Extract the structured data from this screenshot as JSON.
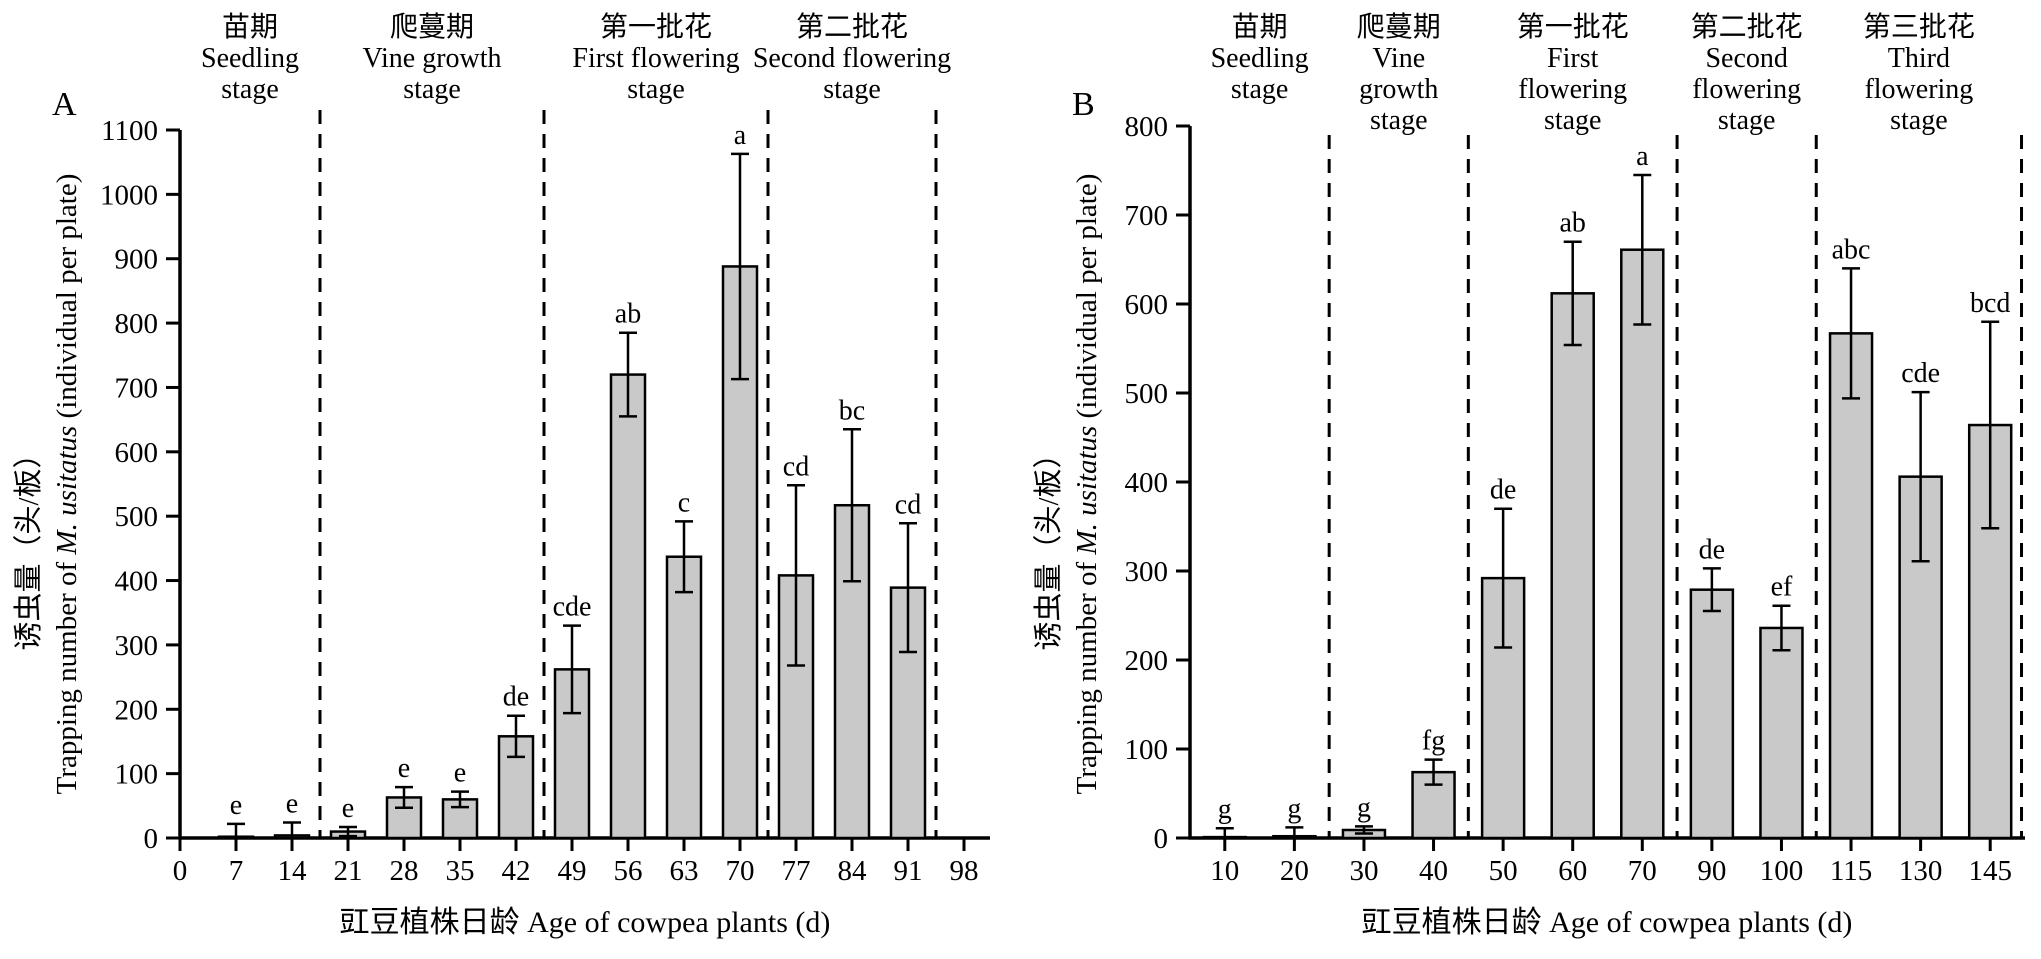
{
  "figure": {
    "background": "#ffffff",
    "bar_fill": "#c9c9c9",
    "line_color": "#000000",
    "x_axis_label": "豇豆植株日龄 Age of cowpea plants (d)",
    "y_axis_label_cn": "诱虫量（头/板）",
    "y_axis_label_en_prefix": "Trapping number of ",
    "y_axis_label_en_italic": "M. usitatus",
    "y_axis_label_en_suffix": " (individual per plate)"
  },
  "chart_data": [
    {
      "type": "bar",
      "panel_label": "A",
      "title": "",
      "categories": [
        "0",
        "7",
        "14",
        "21",
        "28",
        "35",
        "42",
        "49",
        "56",
        "63",
        "70",
        "77",
        "84",
        "91",
        "98"
      ],
      "bars": [
        {
          "category": "7",
          "mean": 2,
          "error": 20,
          "sig_letter": "e"
        },
        {
          "category": "14",
          "mean": 4,
          "error": 20,
          "sig_letter": "e"
        },
        {
          "category": "21",
          "mean": 10,
          "error": 7,
          "sig_letter": "e"
        },
        {
          "category": "28",
          "mean": 63,
          "error": 16,
          "sig_letter": "e"
        },
        {
          "category": "35",
          "mean": 60,
          "error": 12,
          "sig_letter": "e"
        },
        {
          "category": "42",
          "mean": 158,
          "error": 32,
          "sig_letter": "de"
        },
        {
          "category": "49",
          "mean": 262,
          "error": 68,
          "sig_letter": "cde"
        },
        {
          "category": "56",
          "mean": 720,
          "error": 65,
          "sig_letter": "ab"
        },
        {
          "category": "63",
          "mean": 437,
          "error": 55,
          "sig_letter": "c"
        },
        {
          "category": "70",
          "mean": 888,
          "error": 175,
          "sig_letter": "a"
        },
        {
          "category": "77",
          "mean": 408,
          "error": 140,
          "sig_letter": "cd"
        },
        {
          "category": "84",
          "mean": 517,
          "error": 118,
          "sig_letter": "bc"
        },
        {
          "category": "91",
          "mean": 389,
          "error": 100,
          "sig_letter": "cd"
        }
      ],
      "ylim": [
        0,
        1100
      ],
      "y_tick_step": 100,
      "grid": false,
      "legend": null,
      "xlabel": "豇豆植株日龄 Age of cowpea plants (d)",
      "ylabel_cn": "诱虫量（头/板）",
      "ylabel_en_prefix": "Trapping number of ",
      "ylabel_en_italic": "M. usitatus",
      "ylabel_en_suffix": " (individual per plate)",
      "x_mode": "edge",
      "separators_tick_units": [
        2.5,
        6.5,
        10.5,
        13.5
      ],
      "stages": [
        {
          "label_cn": "苗期",
          "label_en_lines": [
            "Seedling",
            "stage"
          ],
          "span_ticks": [
            0,
            2.5
          ]
        },
        {
          "label_cn": "爬蔓期",
          "label_en_lines": [
            "Vine growth",
            "stage"
          ],
          "span_ticks": [
            2.5,
            6.5
          ]
        },
        {
          "label_cn": "第一批花",
          "label_en_lines": [
            "First flowering",
            "stage"
          ],
          "span_ticks": [
            6.5,
            10.5
          ]
        },
        {
          "label_cn": "第二批花",
          "label_en_lines": [
            "Second flowering",
            "stage"
          ],
          "span_ticks": [
            10.5,
            13.5
          ]
        }
      ]
    },
    {
      "type": "bar",
      "panel_label": "B",
      "title": "",
      "categories": [
        "10",
        "20",
        "30",
        "40",
        "50",
        "60",
        "70",
        "90",
        "100",
        "115",
        "130",
        "145"
      ],
      "bars": [
        {
          "category": "10",
          "mean": 1,
          "error": 10,
          "sig_letter": "g"
        },
        {
          "category": "20",
          "mean": 2,
          "error": 10,
          "sig_letter": "g"
        },
        {
          "category": "30",
          "mean": 9,
          "error": 4,
          "sig_letter": "g"
        },
        {
          "category": "40",
          "mean": 74,
          "error": 14,
          "sig_letter": "fg"
        },
        {
          "category": "50",
          "mean": 292,
          "error": 78,
          "sig_letter": "de"
        },
        {
          "category": "60",
          "mean": 612,
          "error": 58,
          "sig_letter": "ab"
        },
        {
          "category": "70",
          "mean": 661,
          "error": 84,
          "sig_letter": "a"
        },
        {
          "category": "90",
          "mean": 279,
          "error": 24,
          "sig_letter": "de"
        },
        {
          "category": "100",
          "mean": 236,
          "error": 25,
          "sig_letter": "ef"
        },
        {
          "category": "115",
          "mean": 567,
          "error": 73,
          "sig_letter": "abc"
        },
        {
          "category": "130",
          "mean": 406,
          "error": 95,
          "sig_letter": "cde"
        },
        {
          "category": "145",
          "mean": 464,
          "error": 116,
          "sig_letter": "bcd"
        }
      ],
      "ylim": [
        0,
        800
      ],
      "y_tick_step": 100,
      "grid": false,
      "legend": null,
      "xlabel": "豇豆植株日龄 Age of cowpea plants (d)",
      "ylabel_cn": "诱虫量（头/板）",
      "ylabel_en_prefix": "Trapping number of ",
      "ylabel_en_italic": "M. usitatus",
      "ylabel_en_suffix": " (individual per plate)",
      "x_mode": "center",
      "separators_tick_units": [
        2,
        4,
        7,
        9,
        11.95
      ],
      "stages": [
        {
          "label_cn": "苗期",
          "label_en_lines": [
            "Seedling",
            "stage"
          ],
          "span_ticks": [
            0,
            2
          ]
        },
        {
          "label_cn": "爬蔓期",
          "label_en_lines": [
            "Vine",
            "growth",
            "stage"
          ],
          "span_ticks": [
            2,
            4
          ]
        },
        {
          "label_cn": "第一批花",
          "label_en_lines": [
            "First",
            "flowering",
            "stage"
          ],
          "span_ticks": [
            4,
            7
          ]
        },
        {
          "label_cn": "第二批花",
          "label_en_lines": [
            "Second",
            "flowering",
            "stage"
          ],
          "span_ticks": [
            7,
            9
          ]
        },
        {
          "label_cn": "第三批花",
          "label_en_lines": [
            "Third",
            "flowering",
            "stage"
          ],
          "span_ticks": [
            9,
            11.95
          ]
        }
      ]
    }
  ]
}
